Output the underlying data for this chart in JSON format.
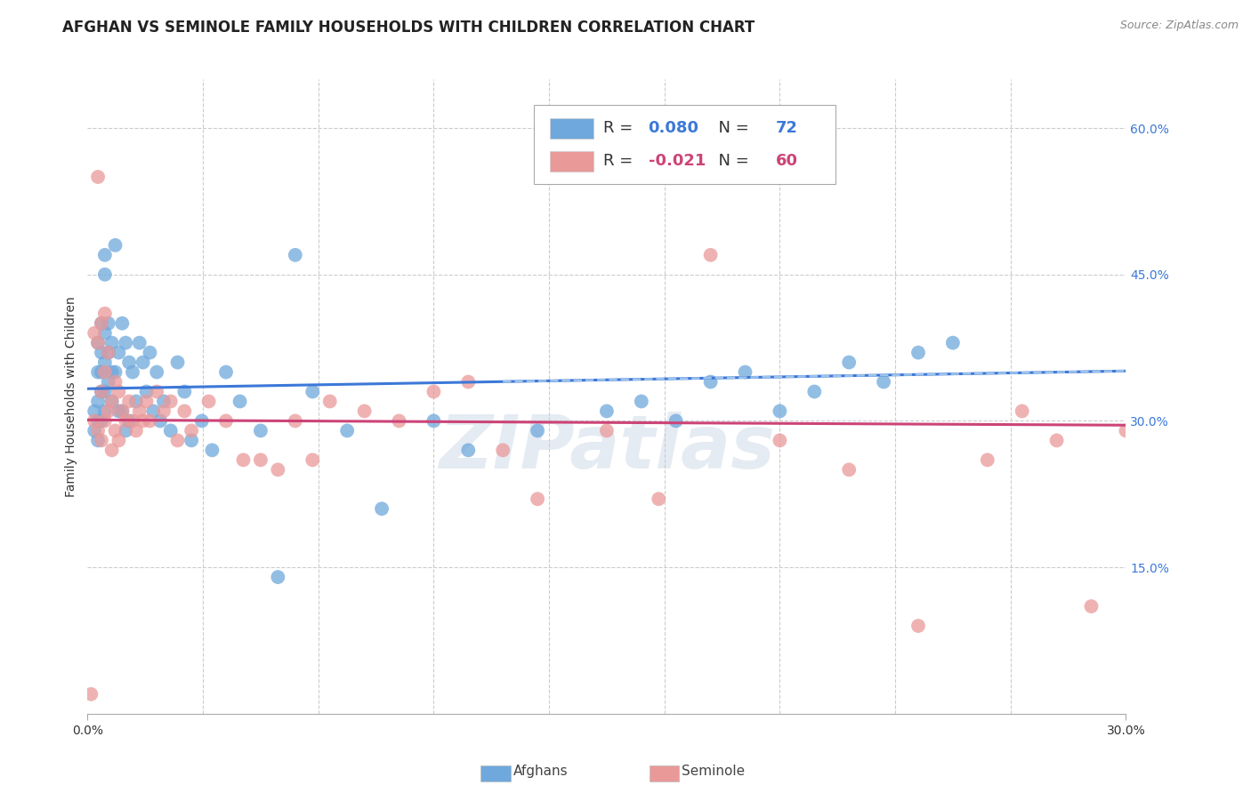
{
  "title": "AFGHAN VS SEMINOLE FAMILY HOUSEHOLDS WITH CHILDREN CORRELATION CHART",
  "source": "Source: ZipAtlas.com",
  "ylabel": "Family Households with Children",
  "yaxis_values": [
    0.15,
    0.3,
    0.45,
    0.6
  ],
  "xlim": [
    0.0,
    0.3
  ],
  "ylim": [
    0.0,
    0.65
  ],
  "afghan_color": "#6fa8dc",
  "seminole_color": "#ea9999",
  "afghan_line_color": "#3c78d8",
  "seminole_line_color": "#cc4477",
  "afghan_R": 0.08,
  "afghan_N": 72,
  "seminole_R": -0.021,
  "seminole_N": 60,
  "legend_color": "#3c78d8",
  "background_color": "#ffffff",
  "grid_color": "#cccccc",
  "afghan_points_x": [
    0.002,
    0.002,
    0.003,
    0.003,
    0.003,
    0.003,
    0.003,
    0.004,
    0.004,
    0.004,
    0.004,
    0.004,
    0.005,
    0.005,
    0.005,
    0.005,
    0.005,
    0.005,
    0.006,
    0.006,
    0.006,
    0.007,
    0.007,
    0.007,
    0.008,
    0.008,
    0.009,
    0.009,
    0.01,
    0.01,
    0.011,
    0.011,
    0.012,
    0.012,
    0.013,
    0.014,
    0.015,
    0.016,
    0.017,
    0.018,
    0.019,
    0.02,
    0.021,
    0.022,
    0.024,
    0.026,
    0.028,
    0.03,
    0.033,
    0.036,
    0.04,
    0.044,
    0.05,
    0.055,
    0.06,
    0.065,
    0.075,
    0.085,
    0.1,
    0.11,
    0.13,
    0.15,
    0.16,
    0.17,
    0.18,
    0.19,
    0.2,
    0.21,
    0.22,
    0.23,
    0.24,
    0.25
  ],
  "afghan_points_y": [
    0.31,
    0.29,
    0.38,
    0.35,
    0.32,
    0.3,
    0.28,
    0.4,
    0.37,
    0.35,
    0.33,
    0.3,
    0.47,
    0.45,
    0.39,
    0.36,
    0.33,
    0.31,
    0.4,
    0.37,
    0.34,
    0.38,
    0.35,
    0.32,
    0.48,
    0.35,
    0.37,
    0.31,
    0.4,
    0.31,
    0.38,
    0.29,
    0.36,
    0.3,
    0.35,
    0.32,
    0.38,
    0.36,
    0.33,
    0.37,
    0.31,
    0.35,
    0.3,
    0.32,
    0.29,
    0.36,
    0.33,
    0.28,
    0.3,
    0.27,
    0.35,
    0.32,
    0.29,
    0.14,
    0.47,
    0.33,
    0.29,
    0.21,
    0.3,
    0.27,
    0.29,
    0.31,
    0.32,
    0.3,
    0.34,
    0.35,
    0.31,
    0.33,
    0.36,
    0.34,
    0.37,
    0.38
  ],
  "seminole_points_x": [
    0.001,
    0.002,
    0.002,
    0.003,
    0.003,
    0.003,
    0.004,
    0.004,
    0.004,
    0.005,
    0.005,
    0.005,
    0.006,
    0.006,
    0.007,
    0.007,
    0.008,
    0.008,
    0.009,
    0.009,
    0.01,
    0.011,
    0.012,
    0.013,
    0.014,
    0.015,
    0.016,
    0.017,
    0.018,
    0.02,
    0.022,
    0.024,
    0.026,
    0.028,
    0.03,
    0.035,
    0.04,
    0.045,
    0.05,
    0.055,
    0.06,
    0.065,
    0.07,
    0.08,
    0.09,
    0.1,
    0.11,
    0.12,
    0.13,
    0.15,
    0.165,
    0.18,
    0.2,
    0.22,
    0.24,
    0.26,
    0.27,
    0.28,
    0.29,
    0.3
  ],
  "seminole_points_y": [
    0.02,
    0.39,
    0.3,
    0.55,
    0.38,
    0.29,
    0.4,
    0.33,
    0.28,
    0.41,
    0.35,
    0.3,
    0.37,
    0.31,
    0.32,
    0.27,
    0.34,
    0.29,
    0.33,
    0.28,
    0.31,
    0.3,
    0.32,
    0.3,
    0.29,
    0.31,
    0.3,
    0.32,
    0.3,
    0.33,
    0.31,
    0.32,
    0.28,
    0.31,
    0.29,
    0.32,
    0.3,
    0.26,
    0.26,
    0.25,
    0.3,
    0.26,
    0.32,
    0.31,
    0.3,
    0.33,
    0.34,
    0.27,
    0.22,
    0.29,
    0.22,
    0.47,
    0.28,
    0.25,
    0.09,
    0.26,
    0.31,
    0.28,
    0.11,
    0.29
  ]
}
